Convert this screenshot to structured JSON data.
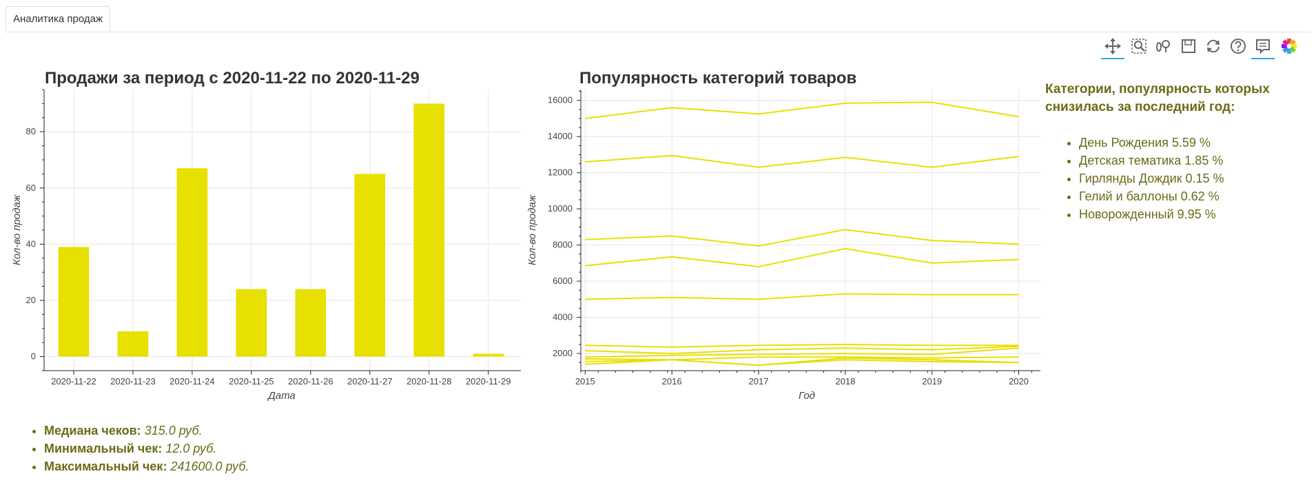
{
  "tab": {
    "label": "Аналитика продаж"
  },
  "toolbar": {
    "tools": [
      "pan-icon",
      "box-zoom-icon",
      "wheel-zoom-icon",
      "save-icon",
      "reset-icon",
      "help-icon",
      "hover-icon",
      "bokeh-logo-icon"
    ]
  },
  "chart_data": [
    {
      "type": "bar",
      "title": "Продажи за период с 2020-11-22 по 2020-11-29",
      "xlabel": "Дата",
      "ylabel": "Кол-во продаж",
      "categories": [
        "2020-11-22",
        "2020-11-23",
        "2020-11-24",
        "2020-11-25",
        "2020-11-26",
        "2020-11-27",
        "2020-11-28",
        "2020-11-29"
      ],
      "values": [
        39,
        9,
        67,
        24,
        24,
        65,
        90,
        1
      ],
      "yticks": [
        0,
        20,
        40,
        60,
        80
      ],
      "ylim": [
        -5,
        95
      ],
      "color": "#e8e000"
    },
    {
      "type": "line",
      "title": "Популярность категорий товаров",
      "xlabel": "Год",
      "ylabel": "Кол-во продаж",
      "x": [
        2015,
        2016,
        2017,
        2018,
        2019,
        2020
      ],
      "xticks": [
        2015,
        2016,
        2017,
        2018,
        2019,
        2020
      ],
      "yticks": [
        2000,
        4000,
        6000,
        8000,
        10000,
        12000,
        14000,
        16000
      ],
      "xlim": [
        2014.95,
        2020.25
      ],
      "ylim": [
        1050,
        16600
      ],
      "color": "#e8e000",
      "series": [
        {
          "name": "s1",
          "values": [
            15000,
            15600,
            15250,
            15850,
            15900,
            15100
          ]
        },
        {
          "name": "s2",
          "values": [
            12600,
            12950,
            12300,
            12850,
            12300,
            12900
          ]
        },
        {
          "name": "s3",
          "values": [
            8300,
            8500,
            7950,
            8850,
            8250,
            8050
          ]
        },
        {
          "name": "s4",
          "values": [
            6850,
            7350,
            6800,
            7800,
            7000,
            7200
          ]
        },
        {
          "name": "s5",
          "values": [
            5000,
            5100,
            5000,
            5300,
            5250,
            5250
          ]
        },
        {
          "name": "s6",
          "values": [
            2450,
            2350,
            2450,
            2500,
            2450,
            2450
          ]
        },
        {
          "name": "s7",
          "values": [
            2150,
            2000,
            2200,
            2300,
            2200,
            2400
          ]
        },
        {
          "name": "s8",
          "values": [
            1800,
            1900,
            1950,
            2000,
            1950,
            2300
          ]
        },
        {
          "name": "s9",
          "values": [
            1700,
            1650,
            1800,
            1800,
            1750,
            1800
          ]
        },
        {
          "name": "s10",
          "values": [
            1550,
            1650,
            1350,
            1750,
            1650,
            1500
          ]
        },
        {
          "name": "s11",
          "values": [
            1400,
            1650,
            1350,
            1650,
            1550,
            1500
          ]
        }
      ]
    }
  ],
  "categories_panel": {
    "heading": "Категории, популярность которых снизилась за последний год:",
    "items": [
      "День Рождения 5.59 %",
      "Детская тематика 1.85 %",
      "Гирлянды Дождик 0.15 %",
      "Гелий и баллоны 0.62 %",
      "Новорожденный 9.95 %"
    ]
  },
  "stats": [
    {
      "label": "Медиана чеков:",
      "value": "315.0 руб."
    },
    {
      "label": "Минимальный чек:",
      "value": "12.0 руб."
    },
    {
      "label": "Максимальный чек:",
      "value": "241600.0 руб."
    }
  ]
}
